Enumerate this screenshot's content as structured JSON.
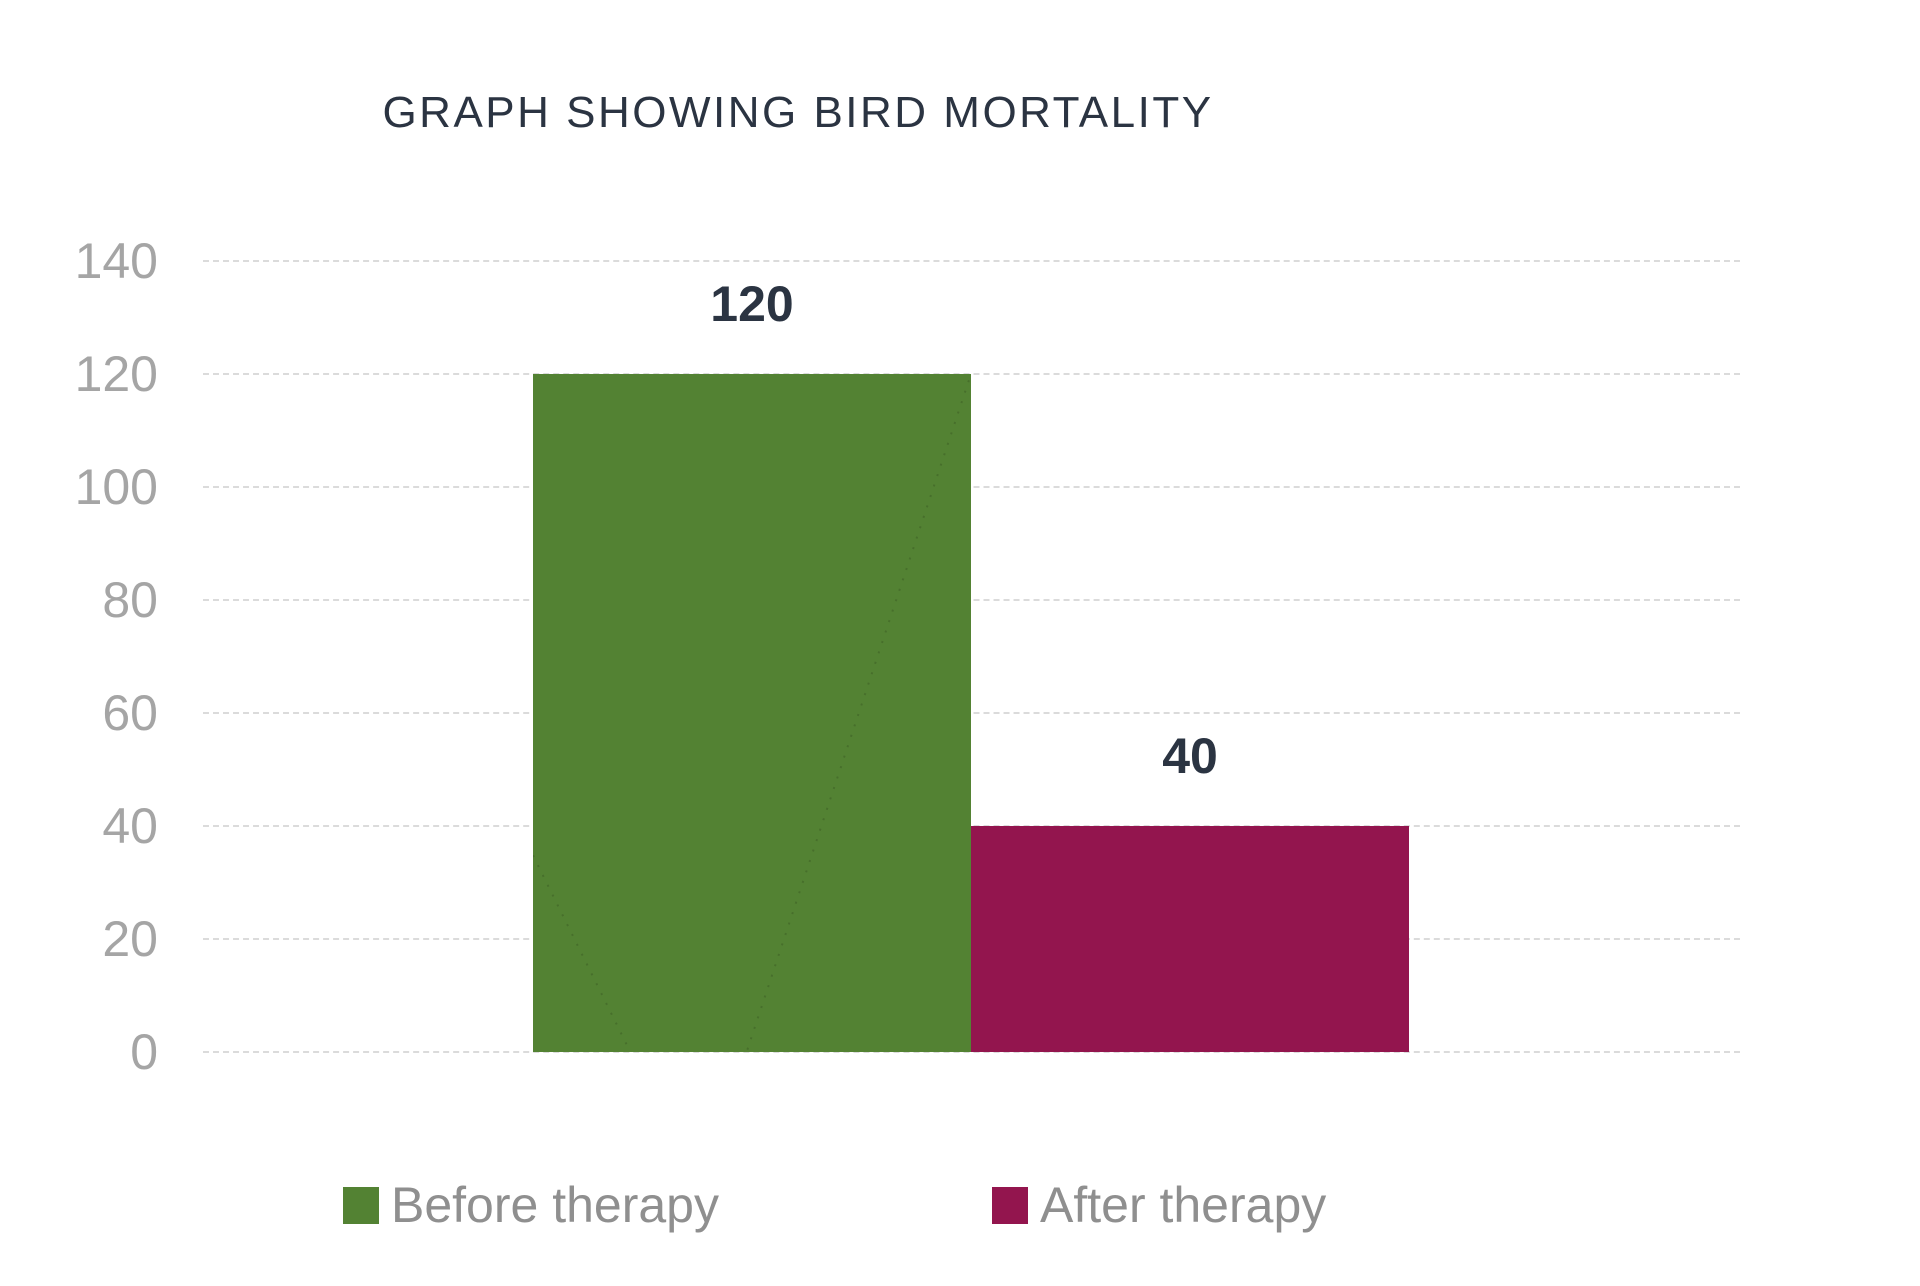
{
  "chart_data": {
    "type": "bar",
    "title": "GRAPH SHOWING BIRD MORTALITY",
    "categories": [
      "Before therapy",
      "After therapy"
    ],
    "values": [
      120,
      40
    ],
    "data_labels": [
      "120",
      "40"
    ],
    "series_colors": [
      "#538233",
      "#93154E"
    ],
    "xlabel": "",
    "ylabel": "",
    "ylim": [
      0,
      140
    ],
    "yticks": [
      0,
      20,
      40,
      60,
      80,
      100,
      120,
      140
    ],
    "grid": "horizontal-dashed",
    "legend_position": "bottom",
    "legend": [
      {
        "label": "Before therapy",
        "color": "#538233"
      },
      {
        "label": "After therapy",
        "color": "#93154E"
      }
    ]
  },
  "colors": {
    "title_text": "#2B3442",
    "value_label_text": "#2B3442",
    "axis_label_text": "#A5A5A5",
    "legend_text": "#8F8F8F",
    "gridline": "#DBDBDB",
    "background": "#FFFFFF"
  }
}
